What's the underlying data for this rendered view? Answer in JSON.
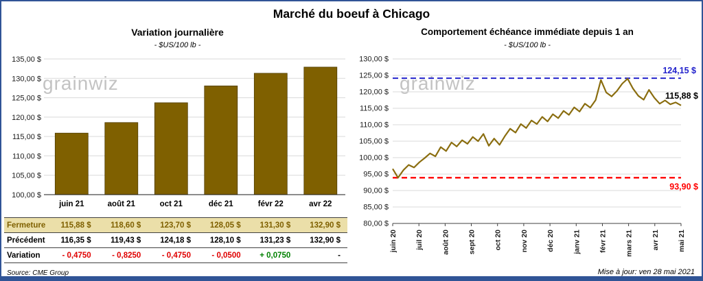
{
  "page": {
    "title": "Marché du boeuf à Chicago",
    "source": "Source: CME Group",
    "updated": "Mise à jour: ven 28 mai 2021",
    "watermark": "grainwiz",
    "frame_color": "#305496"
  },
  "chart_data": [
    {
      "type": "bar",
      "title": "Variation journalière",
      "subtitle": "- $US/100 lb -",
      "categories": [
        "juin 21",
        "août 21",
        "oct 21",
        "déc 21",
        "févr 22",
        "avr 22"
      ],
      "values": [
        115.88,
        118.6,
        123.7,
        128.05,
        131.3,
        132.9
      ],
      "ylim": [
        100,
        135
      ],
      "ytick_step": 5,
      "ylabel": "$US/100 lb",
      "grid": true,
      "bar_color": "#7F6000",
      "table": {
        "rows": [
          {
            "label": "Fermeture",
            "style": "fermeture",
            "cells": [
              {
                "text": "115,88  $"
              },
              {
                "text": "118,60  $"
              },
              {
                "text": "123,70  $"
              },
              {
                "text": "128,05  $"
              },
              {
                "text": "131,30  $"
              },
              {
                "text": "132,90  $"
              }
            ]
          },
          {
            "label": "Précédent",
            "style": "precedent",
            "cells": [
              {
                "text": "116,35  $"
              },
              {
                "text": "119,43  $"
              },
              {
                "text": "124,18  $"
              },
              {
                "text": "128,10  $"
              },
              {
                "text": "131,23  $"
              },
              {
                "text": "132,90  $"
              }
            ]
          },
          {
            "label": "Variation",
            "style": "variation",
            "cells": [
              {
                "text": "- 0,4750",
                "tone": "neg"
              },
              {
                "text": "- 0,8250",
                "tone": "neg"
              },
              {
                "text": "- 0,4750",
                "tone": "neg"
              },
              {
                "text": "- 0,0500",
                "tone": "neg"
              },
              {
                "text": "+ 0,0750",
                "tone": "pos"
              },
              {
                "text": "-",
                "tone": "flat"
              }
            ]
          }
        ]
      }
    },
    {
      "type": "line",
      "title": "Comportement échéance immédiate depuis 1 an",
      "subtitle": "- $US/100 lb -",
      "x_labels": [
        "juin 20",
        "juil 20",
        "août 20",
        "sept 20",
        "oct 20",
        "nov 20",
        "déc 20",
        "janv 21",
        "févr 21",
        "mars 21",
        "avr 21",
        "mai 21"
      ],
      "values": [
        96.6,
        93.9,
        96.2,
        97.8,
        97.0,
        98.6,
        99.9,
        101.3,
        100.4,
        103.2,
        102.0,
        104.6,
        103.4,
        105.3,
        104.2,
        106.3,
        105.0,
        107.2,
        103.6,
        105.8,
        103.9,
        106.5,
        108.8,
        107.6,
        110.2,
        109.0,
        111.3,
        110.2,
        112.4,
        111.0,
        113.2,
        112.0,
        114.2,
        113.0,
        115.3,
        114.0,
        116.4,
        115.2,
        117.5,
        123.6,
        119.8,
        118.6,
        120.3,
        122.5,
        124.0,
        121.0,
        118.8,
        117.6,
        120.6,
        118.2,
        116.4,
        117.4,
        116.2,
        116.8,
        115.88
      ],
      "ylim": [
        80,
        130
      ],
      "ytick_step": 5,
      "ylabel": "$US/100 lb",
      "grid": true,
      "legend": "none",
      "line_color": "#8A6D0F",
      "max_line": {
        "value": 124.15,
        "label": "124,15 $",
        "color": "#2222CC"
      },
      "min_line": {
        "value": 93.9,
        "label": "93,90 $",
        "color": "#FF0000"
      },
      "last_point": {
        "value": 115.88,
        "label": "115,88 $",
        "color": "#000000"
      }
    }
  ]
}
